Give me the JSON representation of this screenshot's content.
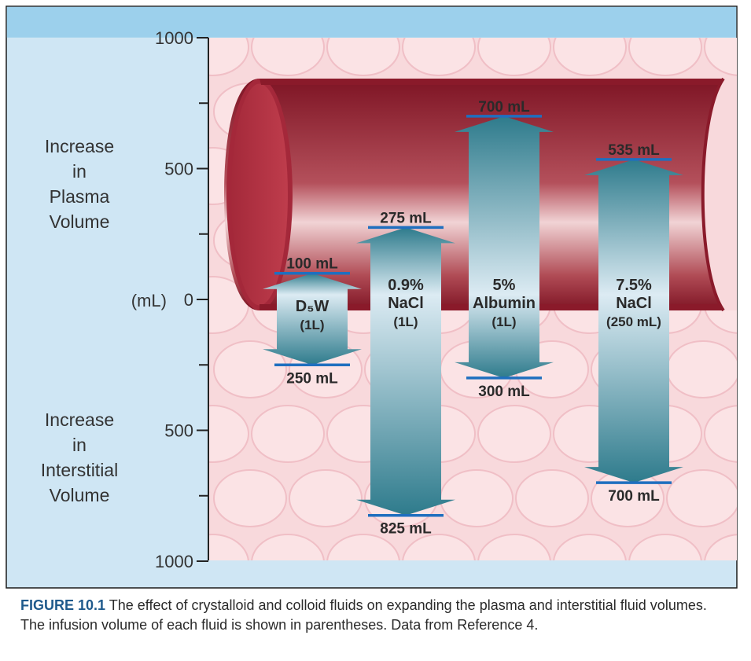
{
  "chart_data": {
    "type": "bar",
    "title": "The effect of crystalloid and colloid fluids on expanding the plasma and interstitial fluid volumes",
    "y_unit": "(mL)",
    "ylim": [
      -1000,
      1000
    ],
    "yticks": [
      {
        "value": 1000,
        "label": "1000"
      },
      {
        "value": 500,
        "label": "500"
      },
      {
        "value": 0,
        "label": "0"
      },
      {
        "value": -500,
        "label": "500"
      },
      {
        "value": -1000,
        "label": "1000"
      }
    ],
    "ylabel_upper": [
      "Increase",
      "in",
      "Plasma",
      "Volume"
    ],
    "ylabel_lower": [
      "Increase",
      "in",
      "Interstitial",
      "Volume"
    ],
    "series": [
      {
        "name_lines": [
          "D₅W",
          "(1L)"
        ],
        "infusion_volume": "(1L)",
        "plasma_increase": 100,
        "interstitial_increase": 250,
        "plasma_label": "100 mL",
        "interstitial_label": "250 mL"
      },
      {
        "name_lines": [
          "0.9%",
          "NaCl",
          "(1L)"
        ],
        "infusion_volume": "(1L)",
        "plasma_increase": 275,
        "interstitial_increase": 825,
        "plasma_label": "275 mL",
        "interstitial_label": "825 mL"
      },
      {
        "name_lines": [
          "5%",
          "Albumin",
          "(1L)"
        ],
        "infusion_volume": "(1L)",
        "plasma_increase": 700,
        "interstitial_increase": 300,
        "plasma_label": "700 mL",
        "interstitial_label": "300 mL"
      },
      {
        "name_lines": [
          "7.5%",
          "NaCl",
          "(250 mL)"
        ],
        "infusion_volume": "(250 mL)",
        "plasma_increase": 535,
        "interstitial_increase": 700,
        "plasma_label": "535 mL",
        "interstitial_label": "700 mL"
      }
    ]
  },
  "caption": {
    "label": "FIGURE 10.1",
    "text": "The effect of crystalloid and colloid fluids on expanding the plasma and interstitial fluid volumes. The infusion volume of each fluid is shown in parentheses. Data from Reference 4."
  },
  "colors": {
    "frame_bg": "#cfe6f4",
    "top_band": "#9cd0ec",
    "tissue": "#f8d9dc",
    "cell_outline": "#f2bfc6",
    "vessel_dark": "#8e1c2c",
    "vessel_mid": "#c2565f",
    "arrow_dark": "#2f7d8e",
    "arrow_light": "#d8eaf2",
    "marker": "#1f6fbf"
  }
}
